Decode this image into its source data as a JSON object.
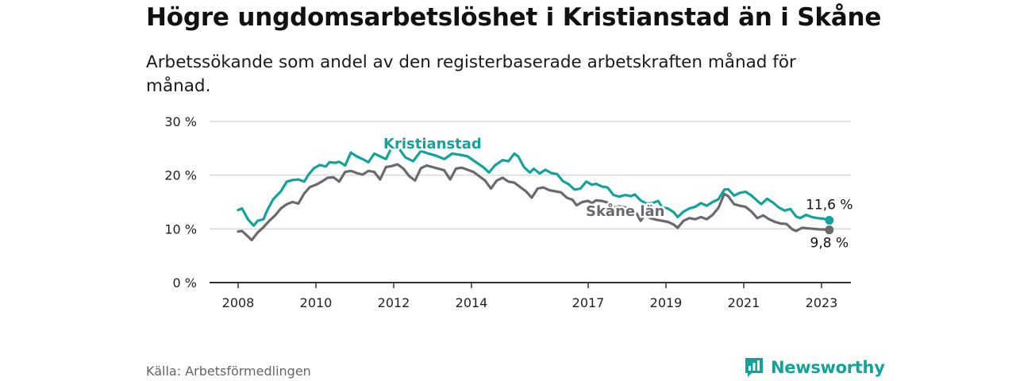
{
  "title": "Högre ungdomsarbetslöshet i Kristianstad än i Skåne",
  "subtitle": "Arbetssökande som andel av den registerbaserade arbetskraften månad för månad.",
  "source": "Källa: Arbetsförmedlingen",
  "brand": "Newsworthy",
  "colors": {
    "kristianstad": "#12a39a",
    "skane": "#6b6970",
    "grid": "#d9d9d9",
    "axis": "#333333",
    "brand": "#12a39a"
  },
  "chart_data": {
    "type": "line",
    "title": "Högre ungdomsarbetslöshet i Kristianstad än i Skåne",
    "xlabel": "",
    "ylabel": "",
    "ylim": [
      0,
      30
    ],
    "xlim": [
      2008.0,
      2023.4
    ],
    "yticks": [
      0,
      10,
      20,
      30
    ],
    "ytick_labels": [
      "0 %",
      "10 %",
      "20 %",
      "30 %"
    ],
    "xticks": [
      2008,
      2010,
      2012,
      2014,
      2017,
      2019,
      2021,
      2023
    ],
    "xtick_labels": [
      "2008",
      "2010",
      "2012",
      "2014",
      "2017",
      "2019",
      "2021",
      "2023"
    ],
    "grid": true,
    "series": [
      {
        "name": "Kristianstad",
        "end_label": "11,6 %",
        "points": [
          [
            2008.0,
            13.5
          ],
          [
            2008.1,
            13.8
          ],
          [
            2008.25,
            11.8
          ],
          [
            2008.4,
            10.6
          ],
          [
            2008.5,
            11.5
          ],
          [
            2008.65,
            11.8
          ],
          [
            2008.75,
            13.5
          ],
          [
            2008.9,
            15.5
          ],
          [
            2009.1,
            17.0
          ],
          [
            2009.25,
            18.8
          ],
          [
            2009.4,
            19.1
          ],
          [
            2009.55,
            19.2
          ],
          [
            2009.7,
            18.8
          ],
          [
            2009.8,
            20.0
          ],
          [
            2009.95,
            21.3
          ],
          [
            2010.1,
            21.9
          ],
          [
            2010.25,
            21.6
          ],
          [
            2010.35,
            22.4
          ],
          [
            2010.5,
            22.3
          ],
          [
            2010.6,
            22.5
          ],
          [
            2010.75,
            21.8
          ],
          [
            2010.9,
            24.2
          ],
          [
            2011.05,
            23.5
          ],
          [
            2011.2,
            23.0
          ],
          [
            2011.35,
            22.4
          ],
          [
            2011.5,
            24.0
          ],
          [
            2011.65,
            23.5
          ],
          [
            2011.8,
            23.0
          ],
          [
            2011.95,
            25.2
          ],
          [
            2012.15,
            24.8
          ],
          [
            2012.3,
            23.3
          ],
          [
            2012.5,
            22.6
          ],
          [
            2012.7,
            24.5
          ],
          [
            2012.9,
            24.0
          ],
          [
            2013.1,
            23.6
          ],
          [
            2013.3,
            23.0
          ],
          [
            2013.5,
            24.0
          ],
          [
            2013.7,
            23.8
          ],
          [
            2013.9,
            23.5
          ],
          [
            2014.1,
            22.5
          ],
          [
            2014.3,
            21.5
          ],
          [
            2014.45,
            20.5
          ],
          [
            2014.6,
            21.8
          ],
          [
            2014.8,
            22.8
          ],
          [
            2014.95,
            22.6
          ],
          [
            2015.1,
            24.0
          ],
          [
            2015.2,
            23.5
          ],
          [
            2015.35,
            21.5
          ],
          [
            2015.5,
            20.5
          ],
          [
            2015.6,
            21.2
          ],
          [
            2015.75,
            20.3
          ],
          [
            2015.9,
            21.0
          ],
          [
            2016.05,
            20.4
          ],
          [
            2016.2,
            20.2
          ],
          [
            2016.35,
            18.9
          ],
          [
            2016.5,
            18.3
          ],
          [
            2016.65,
            17.3
          ],
          [
            2016.8,
            17.5
          ],
          [
            2016.95,
            18.8
          ],
          [
            2017.1,
            18.2
          ],
          [
            2017.2,
            18.4
          ],
          [
            2017.35,
            17.9
          ],
          [
            2017.5,
            17.7
          ],
          [
            2017.65,
            16.3
          ],
          [
            2017.8,
            16.0
          ],
          [
            2017.95,
            16.3
          ],
          [
            2018.1,
            16.1
          ],
          [
            2018.2,
            16.4
          ],
          [
            2018.35,
            15.3
          ],
          [
            2018.5,
            14.7
          ],
          [
            2018.65,
            14.8
          ],
          [
            2018.8,
            15.2
          ],
          [
            2018.9,
            14.0
          ],
          [
            2019.05,
            13.8
          ],
          [
            2019.2,
            13.1
          ],
          [
            2019.3,
            12.2
          ],
          [
            2019.45,
            13.2
          ],
          [
            2019.6,
            13.8
          ],
          [
            2019.75,
            14.1
          ],
          [
            2019.9,
            14.8
          ],
          [
            2020.05,
            14.3
          ],
          [
            2020.2,
            15.0
          ],
          [
            2020.35,
            15.5
          ],
          [
            2020.5,
            17.3
          ],
          [
            2020.6,
            17.4
          ],
          [
            2020.75,
            16.2
          ],
          [
            2020.9,
            16.7
          ],
          [
            2021.05,
            16.9
          ],
          [
            2021.2,
            16.2
          ],
          [
            2021.35,
            15.2
          ],
          [
            2021.45,
            14.6
          ],
          [
            2021.6,
            15.6
          ],
          [
            2021.75,
            14.9
          ],
          [
            2021.9,
            14.0
          ],
          [
            2022.05,
            13.4
          ],
          [
            2022.2,
            13.7
          ],
          [
            2022.35,
            12.3
          ],
          [
            2022.45,
            12.0
          ],
          [
            2022.6,
            12.6
          ],
          [
            2022.75,
            12.2
          ],
          [
            2022.9,
            12.0
          ],
          [
            2023.05,
            11.9
          ],
          [
            2023.2,
            11.6
          ]
        ]
      },
      {
        "name": "Skåne län",
        "end_label": "9,8 %",
        "points": [
          [
            2008.0,
            9.5
          ],
          [
            2008.1,
            9.6
          ],
          [
            2008.25,
            8.6
          ],
          [
            2008.35,
            7.9
          ],
          [
            2008.5,
            9.3
          ],
          [
            2008.65,
            10.3
          ],
          [
            2008.8,
            11.5
          ],
          [
            2008.95,
            12.5
          ],
          [
            2009.1,
            13.8
          ],
          [
            2009.25,
            14.6
          ],
          [
            2009.4,
            15.0
          ],
          [
            2009.55,
            14.7
          ],
          [
            2009.7,
            16.6
          ],
          [
            2009.85,
            17.8
          ],
          [
            2010.0,
            18.2
          ],
          [
            2010.15,
            18.8
          ],
          [
            2010.3,
            19.5
          ],
          [
            2010.45,
            19.6
          ],
          [
            2010.6,
            18.8
          ],
          [
            2010.75,
            20.6
          ],
          [
            2010.9,
            20.8
          ],
          [
            2011.05,
            20.4
          ],
          [
            2011.2,
            20.1
          ],
          [
            2011.35,
            20.8
          ],
          [
            2011.5,
            20.6
          ],
          [
            2011.65,
            19.2
          ],
          [
            2011.8,
            21.5
          ],
          [
            2011.95,
            21.7
          ],
          [
            2012.1,
            22.0
          ],
          [
            2012.25,
            21.2
          ],
          [
            2012.4,
            19.8
          ],
          [
            2012.55,
            19.0
          ],
          [
            2012.7,
            21.3
          ],
          [
            2012.85,
            21.8
          ],
          [
            2013.0,
            21.5
          ],
          [
            2013.15,
            21.2
          ],
          [
            2013.3,
            20.9
          ],
          [
            2013.45,
            19.2
          ],
          [
            2013.6,
            21.2
          ],
          [
            2013.75,
            21.4
          ],
          [
            2013.9,
            21.0
          ],
          [
            2014.05,
            20.6
          ],
          [
            2014.2,
            19.8
          ],
          [
            2014.35,
            19.0
          ],
          [
            2014.5,
            17.5
          ],
          [
            2014.65,
            19.0
          ],
          [
            2014.8,
            19.5
          ],
          [
            2014.95,
            18.8
          ],
          [
            2015.1,
            18.6
          ],
          [
            2015.25,
            17.8
          ],
          [
            2015.4,
            17.0
          ],
          [
            2015.55,
            15.8
          ],
          [
            2015.7,
            17.5
          ],
          [
            2015.85,
            17.7
          ],
          [
            2016.0,
            17.2
          ],
          [
            2016.15,
            17.0
          ],
          [
            2016.3,
            16.8
          ],
          [
            2016.45,
            15.8
          ],
          [
            2016.6,
            15.4
          ],
          [
            2016.7,
            14.4
          ],
          [
            2016.85,
            15.0
          ],
          [
            2017.0,
            15.2
          ],
          [
            2017.1,
            14.8
          ],
          [
            2017.2,
            15.3
          ],
          [
            2017.35,
            15.2
          ],
          [
            2017.5,
            14.9
          ],
          [
            2017.65,
            14.0
          ],
          [
            2017.8,
            14.2
          ],
          [
            2017.95,
            14.0
          ],
          [
            2018.1,
            13.6
          ],
          [
            2018.25,
            12.8
          ],
          [
            2018.35,
            11.5
          ],
          [
            2018.45,
            12.5
          ],
          [
            2018.6,
            12.0
          ],
          [
            2018.75,
            11.7
          ],
          [
            2018.9,
            11.5
          ],
          [
            2019.05,
            11.3
          ],
          [
            2019.2,
            10.8
          ],
          [
            2019.3,
            10.2
          ],
          [
            2019.45,
            11.5
          ],
          [
            2019.6,
            12.0
          ],
          [
            2019.75,
            11.8
          ],
          [
            2019.9,
            12.2
          ],
          [
            2020.05,
            11.8
          ],
          [
            2020.2,
            12.6
          ],
          [
            2020.35,
            13.9
          ],
          [
            2020.5,
            16.5
          ],
          [
            2020.6,
            16.1
          ],
          [
            2020.75,
            14.6
          ],
          [
            2020.9,
            14.3
          ],
          [
            2021.05,
            14.1
          ],
          [
            2021.2,
            13.2
          ],
          [
            2021.35,
            12.0
          ],
          [
            2021.5,
            12.5
          ],
          [
            2021.65,
            11.8
          ],
          [
            2021.8,
            11.3
          ],
          [
            2021.95,
            11.0
          ],
          [
            2022.1,
            10.9
          ],
          [
            2022.25,
            9.9
          ],
          [
            2022.35,
            9.6
          ],
          [
            2022.5,
            10.2
          ],
          [
            2022.65,
            10.1
          ],
          [
            2022.8,
            10.0
          ],
          [
            2022.95,
            9.9
          ],
          [
            2023.05,
            9.9
          ],
          [
            2023.2,
            9.8
          ]
        ]
      }
    ]
  }
}
